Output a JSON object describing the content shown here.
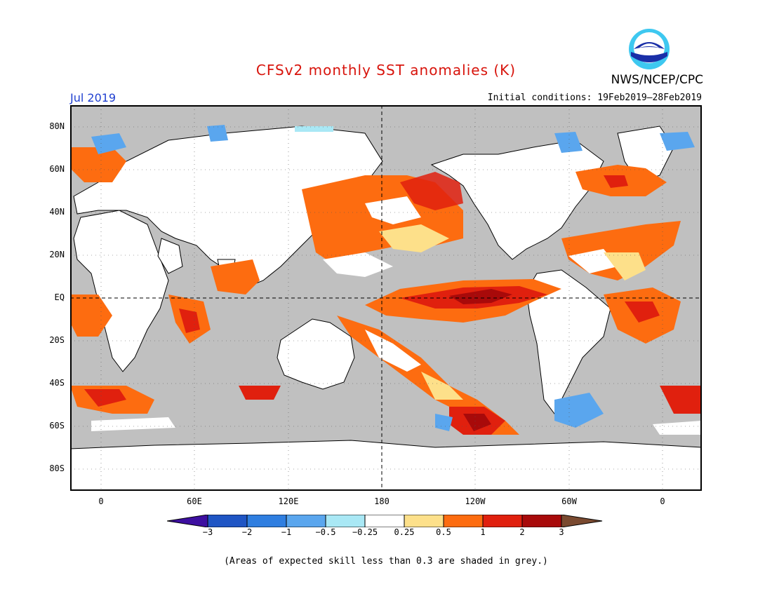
{
  "header": {
    "title": "CFSv2 monthly SST anomalies (K)",
    "agency": "NWS/NCEP/CPC",
    "logo_text": "NOAA",
    "month": "Jul 2019",
    "initial_conditions": "Initial conditions: 19Feb2019–28Feb2019"
  },
  "map": {
    "projection": "cylindrical",
    "land_color": "#ffffff",
    "low_skill_color": "#c0c0c0",
    "lat_labels": [
      "80N",
      "60N",
      "40N",
      "20N",
      "EQ",
      "20S",
      "40S",
      "60S",
      "80S"
    ],
    "lon_labels": [
      "0",
      "60E",
      "120E",
      "180",
      "120W",
      "60W",
      "0"
    ]
  },
  "colorbar": {
    "labels": [
      "−3",
      "−2",
      "−1",
      "−0.5",
      "−0.25",
      "0.25",
      "0.5",
      "1",
      "2",
      "3"
    ],
    "colors": [
      "#3d0fa0",
      "#1f55c4",
      "#2f7ee0",
      "#5aa6ee",
      "#a9e8f5",
      "#ffffff",
      "#fde08a",
      "#fd6c10",
      "#e0200e",
      "#a80a0a",
      "#7a4a30"
    ]
  },
  "footer": {
    "note": "(Areas of expected skill less than 0.3 are shaded in grey.)"
  }
}
